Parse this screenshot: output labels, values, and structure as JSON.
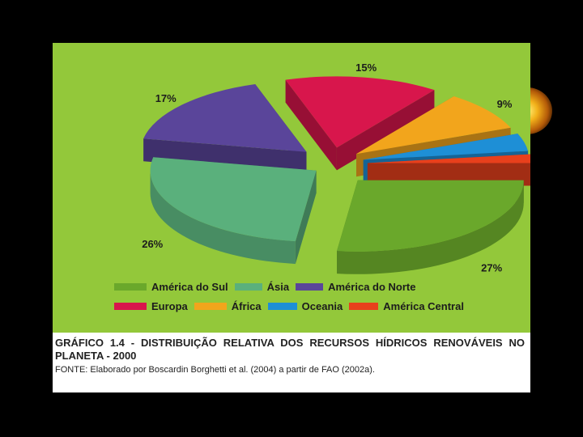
{
  "chart_data": {
    "type": "pie",
    "categories": [
      "América do Sul",
      "Ásia",
      "América do Norte",
      "Europa",
      "África",
      "Oceania",
      "América Central"
    ],
    "values": [
      27,
      26,
      17,
      15,
      9,
      4,
      2
    ],
    "value_labels": [
      "27%",
      "26%",
      "17%",
      "15%",
      "9%",
      "4%",
      "2%"
    ],
    "colors": [
      "#6aa82b",
      "#5ab07c",
      "#5a459a",
      "#d8164c",
      "#f2a51c",
      "#1e8fd6",
      "#e8401c"
    ],
    "legend_placement": "bottom",
    "exploded": true,
    "three_d": true
  },
  "caption": {
    "title": "GRÁFICO 1.4 - DISTRIBUIÇÃO RELATIVA DOS RECURSOS HÍDRICOS RENOVÁVEIS NO PLANETA - 2000",
    "source": "FONTE: Elaborado por Boscardin Borghetti et al. (2004) a partir de FAO (2002a)."
  }
}
